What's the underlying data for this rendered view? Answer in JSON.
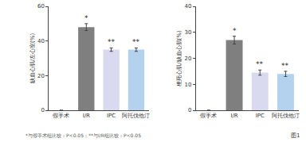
{
  "chart_data": [
    {
      "type": "bar",
      "y_label": "缺血心肌/左心室(%)",
      "categories": [
        "假手术",
        "I/R",
        "IPC",
        "阿托伐他汀"
      ],
      "values": [
        0,
        48,
        35,
        35
      ],
      "errors": [
        0,
        2,
        1,
        1
      ],
      "significance": [
        null,
        "*",
        "**",
        "**"
      ],
      "colors": [
        "#ffffff",
        "#7f7f7f",
        "#d9d9ef",
        "#b4d2ee"
      ],
      "ylim": [
        0,
        60
      ],
      "yticks": [
        0,
        20,
        40,
        60
      ],
      "grid": false,
      "data_labels": false
    },
    {
      "type": "bar",
      "y_label": "梗死心肌/缺血心肌(%)",
      "categories": [
        "假手术",
        "I/R",
        "IPC",
        "阿托伐他汀"
      ],
      "values": [
        0,
        27,
        14.5,
        14
      ],
      "errors": [
        0,
        1.5,
        1,
        1
      ],
      "significance": [
        null,
        "*",
        "**",
        "**"
      ],
      "colors": [
        "#ffffff",
        "#7f7f7f",
        "#d9d9ef",
        "#b4d2ee"
      ],
      "ylim": [
        0,
        40
      ],
      "yticks": [
        0,
        10,
        20,
        30,
        40
      ],
      "grid": false,
      "data_labels": false
    }
  ],
  "footnote": "*与假手术组比较：P<0.05；**与I/R组比较：P<0.05",
  "figure_label": "图1"
}
